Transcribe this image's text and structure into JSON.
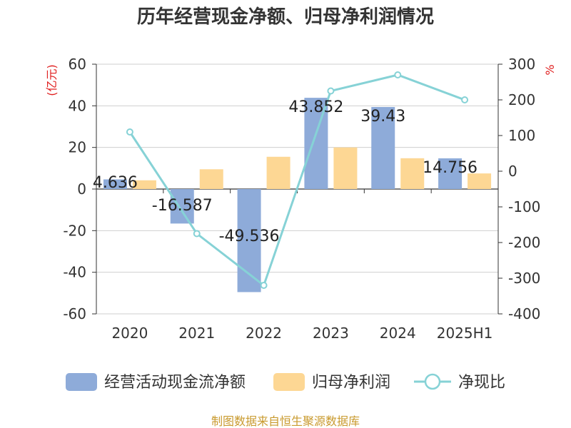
{
  "title": "历年经营现金净额、归母净利润情况",
  "footer": "制图数据来自恒生聚源数据库",
  "chart_data": {
    "type": "bar",
    "title": "历年经营现金净额、归母净利润情况",
    "categories": [
      "2020",
      "2021",
      "2022",
      "2023",
      "2024",
      "2025H1"
    ],
    "series": [
      {
        "name": "经营活动现金流净额",
        "type": "bar",
        "axis": "left",
        "color": "#8eabd9",
        "values": [
          4.636,
          -16.587,
          -49.536,
          43.852,
          39.43,
          14.756
        ],
        "labels": [
          "4.636",
          "-16.587",
          "-49.536",
          "43.852",
          "39.43",
          "14.756"
        ]
      },
      {
        "name": "归母净利润",
        "type": "bar",
        "axis": "left",
        "color": "#fdd794",
        "values": [
          4.2,
          9.5,
          15.5,
          20.0,
          14.8,
          7.5
        ]
      },
      {
        "name": "净现比",
        "type": "line",
        "axis": "right",
        "color": "#86d2d6",
        "values": [
          110,
          -175,
          -320,
          225,
          270,
          200
        ]
      }
    ],
    "y_left": {
      "label": "(亿元)",
      "min": -60,
      "max": 60,
      "ticks": [
        "60",
        "40",
        "20",
        "0",
        "-20",
        "-40",
        "-60"
      ]
    },
    "y_right": {
      "label": "%",
      "min": -400,
      "max": 300,
      "ticks": [
        "300",
        "200",
        "100",
        "0",
        "-100",
        "-200",
        "-300",
        "-400"
      ]
    },
    "grid": true,
    "legend_position": "bottom"
  }
}
